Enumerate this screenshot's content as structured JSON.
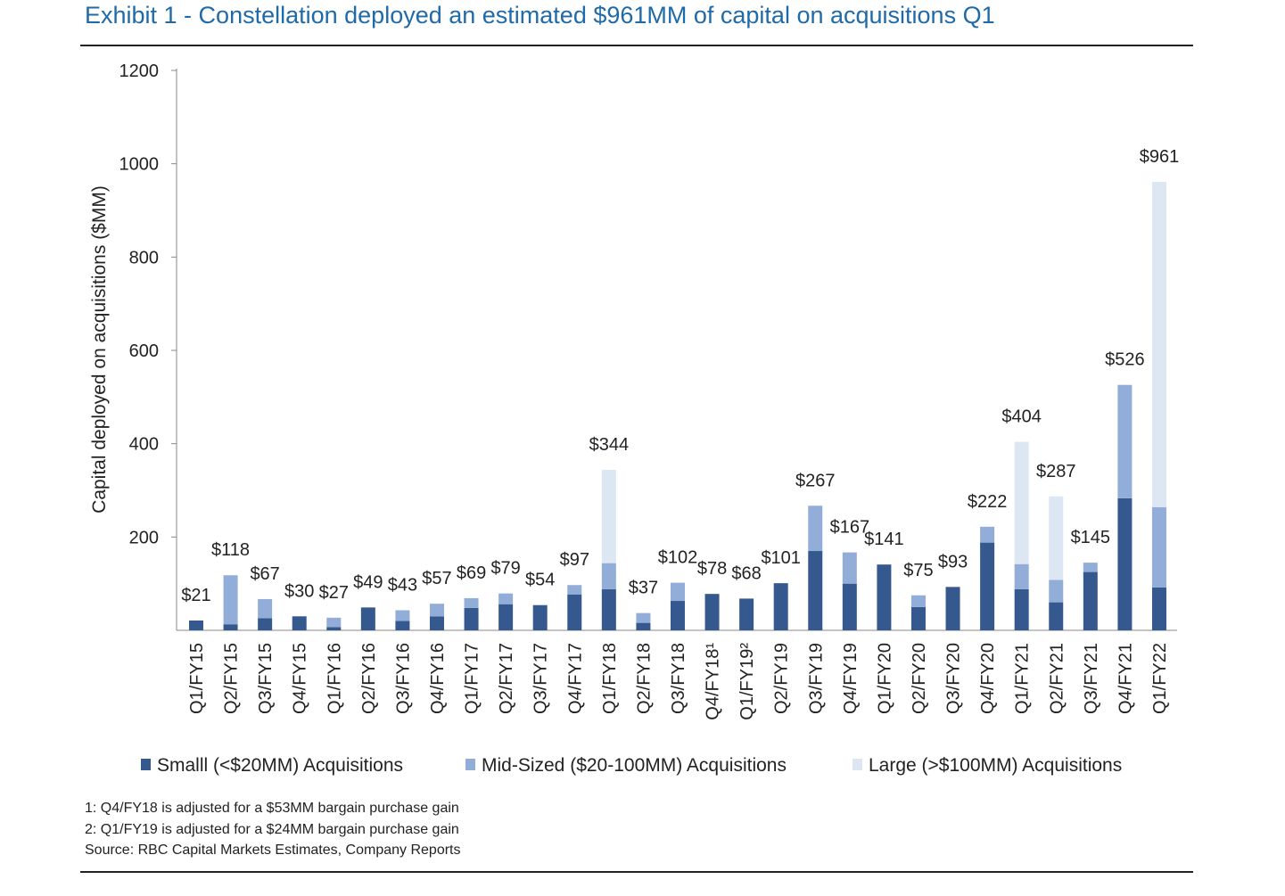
{
  "title": "Exhibit 1 - Constellation deployed an estimated $961MM of capital on acquisitions Q1",
  "notes": [
    "1: Q4/FY18 is adjusted for a $53MM bargain purchase gain",
    "2: Q1/FY19 is adjusted for a $24MM bargain purchase gain",
    "Source: RBC Capital Markets Estimates, Company Reports"
  ],
  "colors": {
    "small": "#35598f",
    "mid": "#92add7",
    "large": "#dde6f3",
    "title": "#1f6aa8"
  },
  "chart_data": {
    "type": "bar",
    "stacked": true,
    "ylabel": "Capital deployed on acquisitions ($MM)",
    "ylim": [
      0,
      1200
    ],
    "yticks": [
      "200",
      "400",
      "600",
      "800",
      "1000",
      "1200"
    ],
    "grid": false,
    "legend_position": "bottom",
    "categories": [
      "Q1/FY15",
      "Q2/FY15",
      "Q3/FY15",
      "Q4/FY15",
      "Q1/FY16",
      "Q2/FY16",
      "Q3/FY16",
      "Q4/FY16",
      "Q1/FY17",
      "Q2/FY17",
      "Q3/FY17",
      "Q4/FY17",
      "Q1/FY18",
      "Q2/FY18",
      "Q3/FY18",
      "Q4/FY18¹",
      "Q1/FY19²",
      "Q2/FY19",
      "Q3/FY19",
      "Q4/FY19",
      "Q1/FY20",
      "Q2/FY20",
      "Q3/FY20",
      "Q4/FY20",
      "Q1/FY21",
      "Q2/FY21",
      "Q3/FY21",
      "Q4/FY21",
      "Q1/FY22"
    ],
    "series": [
      {
        "name": "Smalll (<$20MM) Acquisitions",
        "values": [
          21,
          13,
          26,
          30,
          7,
          49,
          20,
          30,
          48,
          56,
          54,
          77,
          88,
          16,
          63,
          78,
          68,
          101,
          170,
          100,
          141,
          50,
          93,
          188,
          88,
          60,
          125,
          283,
          92
        ]
      },
      {
        "name": "Mid-Sized ($20-100MM) Acquisitions",
        "values": [
          0,
          105,
          41,
          0,
          20,
          0,
          23,
          27,
          21,
          23,
          0,
          20,
          56,
          21,
          39,
          0,
          0,
          0,
          97,
          67,
          0,
          25,
          0,
          34,
          54,
          48,
          20,
          243,
          172
        ]
      },
      {
        "name": "Large (>$100MM) Acquisitions",
        "values": [
          0,
          0,
          0,
          0,
          0,
          0,
          0,
          0,
          0,
          0,
          0,
          0,
          200,
          0,
          0,
          0,
          0,
          0,
          0,
          0,
          0,
          0,
          0,
          0,
          262,
          179,
          0,
          0,
          697
        ]
      }
    ],
    "totals": [
      "$21",
      "$118",
      "$67",
      "$30",
      "$27",
      "$49",
      "$43",
      "$57",
      "$69",
      "$79",
      "$54",
      "$97",
      "$344",
      "$37",
      "$102",
      "$78",
      "$68",
      "$101",
      "$267",
      "$167",
      "$141",
      "$75",
      "$93",
      "$222",
      "$404",
      "$287",
      "$145",
      "$526",
      "$961"
    ]
  }
}
